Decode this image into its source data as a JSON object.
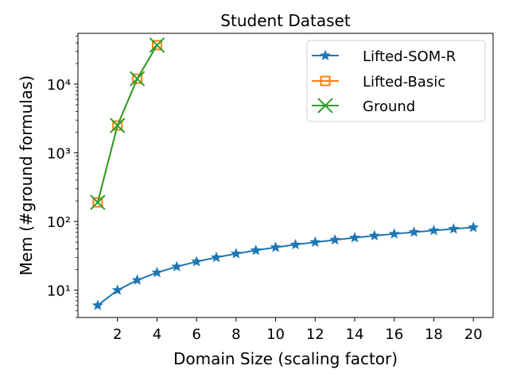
{
  "chart_data": {
    "type": "line",
    "title": "Student Dataset",
    "xlabel": "Domain Size (scaling factor)",
    "ylabel": "Mem (#ground formulas)",
    "xlim": [
      0,
      21
    ],
    "ylim": [
      4,
      55000
    ],
    "yscale": "log",
    "xticks": [
      "2",
      "4",
      "6",
      "8",
      "10",
      "12",
      "14",
      "16",
      "18",
      "20"
    ],
    "yticks": [
      "10¹",
      "10²",
      "10³",
      "10⁴"
    ],
    "grid": false,
    "legend_position": "top-right",
    "series": [
      {
        "name": "Lifted-SOM-R",
        "color": "#1f77b4",
        "marker": "star",
        "x": [
          1,
          2,
          3,
          4,
          5,
          6,
          7,
          8,
          9,
          10,
          11,
          12,
          13,
          14,
          15,
          16,
          17,
          18,
          19,
          20
        ],
        "y": [
          6,
          10,
          14,
          18,
          22,
          26,
          30,
          34,
          38,
          42,
          46,
          50,
          54,
          58,
          62,
          66,
          70,
          74,
          78,
          82
        ]
      },
      {
        "name": "Lifted-Basic",
        "color": "#ff7f0e",
        "marker": "square",
        "x": [
          1,
          2,
          3,
          4
        ],
        "y": [
          190,
          2500,
          12000,
          37000
        ]
      },
      {
        "name": "Ground",
        "color": "#2ca02c",
        "marker": "x",
        "x": [
          1,
          2,
          3,
          4
        ],
        "y": [
          190,
          2500,
          12000,
          37000
        ]
      }
    ]
  }
}
